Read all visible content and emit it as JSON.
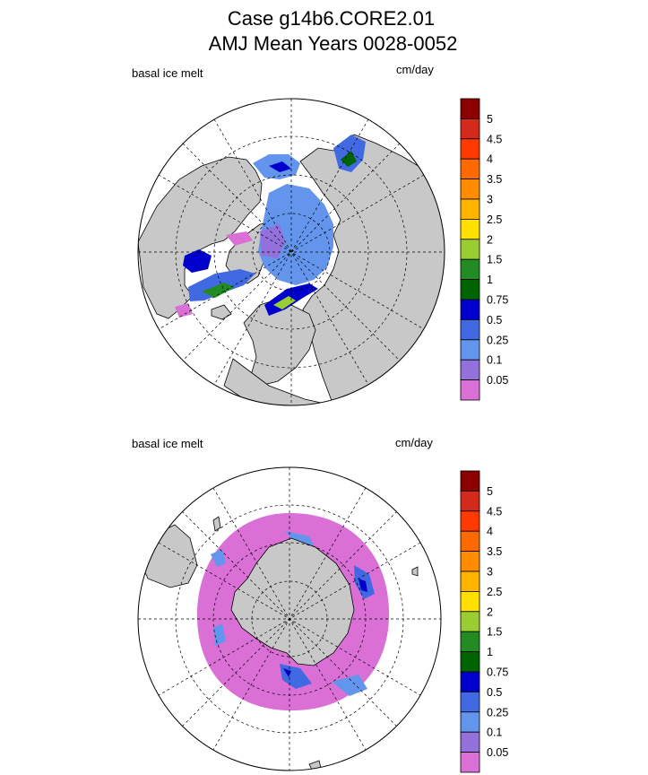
{
  "title": {
    "line1": "Case g14b6.CORE2.01",
    "line2": "AMJ Mean   Years 0028-0052"
  },
  "panels": [
    {
      "hemisphere": "north",
      "variable_label": "basal ice melt",
      "units": "cm/day"
    },
    {
      "hemisphere": "south",
      "variable_label": "basal ice melt",
      "units": "cm/day"
    }
  ],
  "colorbar": {
    "levels": [
      "5",
      "4.5",
      "4",
      "3.5",
      "3",
      "2.5",
      "2",
      "1.5",
      "1",
      "0.75",
      "0.5",
      "0.25",
      "0.1",
      "0.05"
    ],
    "colors": [
      "#8b0000",
      "#d42a1a",
      "#ff3a00",
      "#ff6a00",
      "#ff8c00",
      "#ffb400",
      "#ffe000",
      "#9acd32",
      "#228b22",
      "#006400",
      "#0000cd",
      "#4169e1",
      "#6495ed",
      "#9370db",
      "#da70d6"
    ],
    "land_color": "#c8c8c8"
  }
}
